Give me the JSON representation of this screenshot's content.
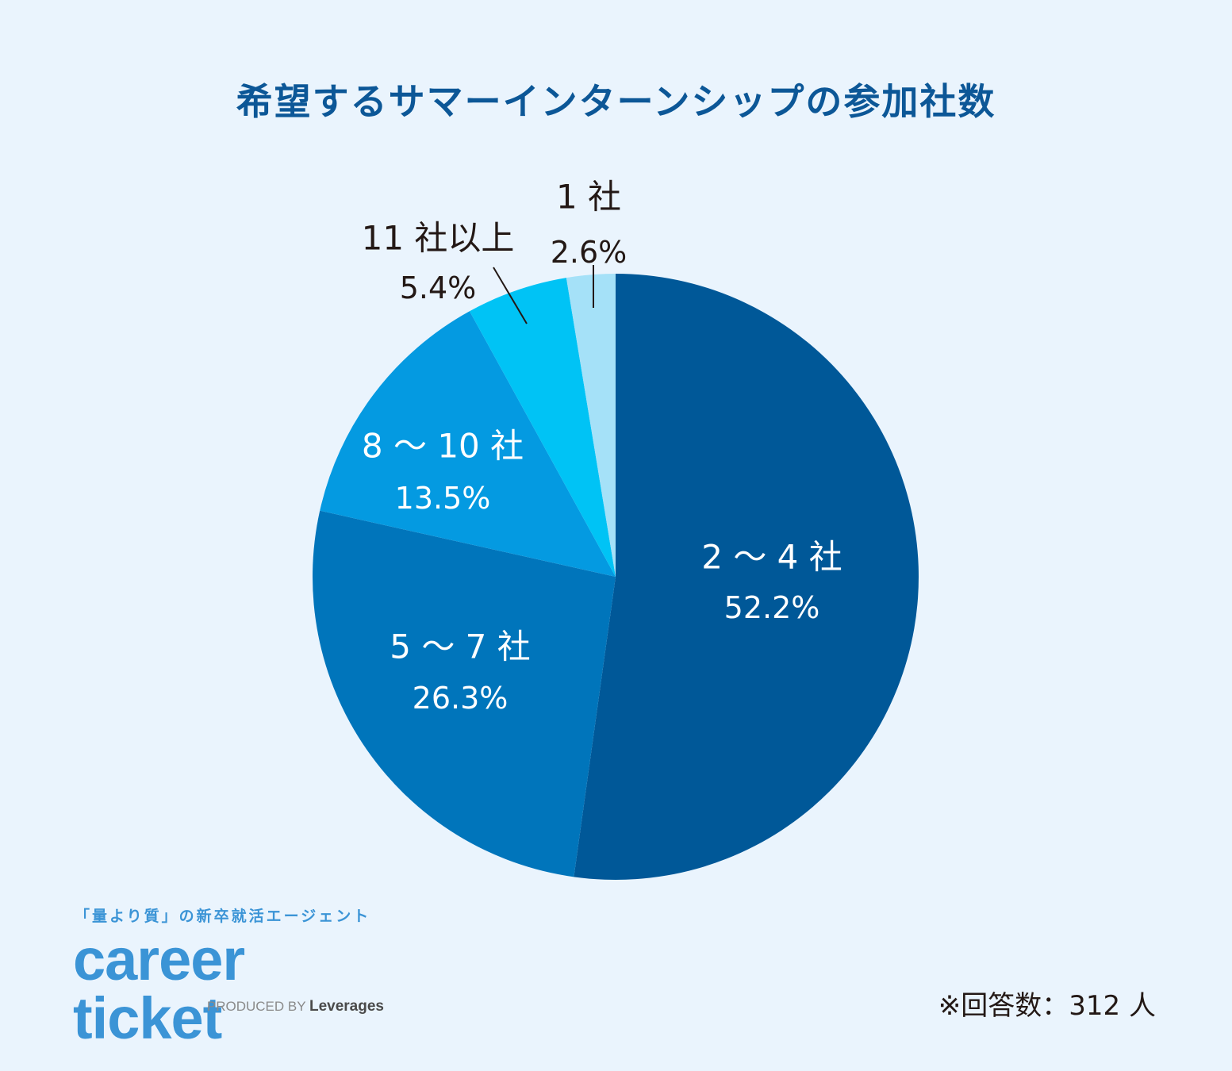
{
  "title": "希望するサマーインターンシップの参加社数",
  "chart_data": {
    "type": "pie",
    "title": "希望するサマーインターンシップの参加社数",
    "start_angle_deg": 0,
    "direction": "clockwise",
    "slices": [
      {
        "label": "2 ～ 4 社",
        "value": 52.2,
        "value_label": "52.2%",
        "color": "#005898",
        "text_color": "#ffffff",
        "label_position": "inside"
      },
      {
        "label": "5 ～ 7 社",
        "value": 26.3,
        "value_label": "26.3%",
        "color": "#0075bb",
        "text_color": "#ffffff",
        "label_position": "inside"
      },
      {
        "label": "8 ～ 10 社",
        "value": 13.5,
        "value_label": "13.5%",
        "color": "#049ae1",
        "text_color": "#ffffff",
        "label_position": "inside"
      },
      {
        "label": "11 社以上",
        "value": 5.4,
        "value_label": "5.4%",
        "color": "#00c3f5",
        "text_color": "#231815",
        "label_position": "outside"
      },
      {
        "label": "1 社",
        "value": 2.6,
        "value_label": "2.6%",
        "color": "#a5e1f8",
        "text_color": "#231815",
        "label_position": "outside"
      }
    ]
  },
  "branding": {
    "tagline": "「量より質」の新卒就活エージェント",
    "logo": "career ticket",
    "produced_by": "PRODUCED BY",
    "company": "Leverages"
  },
  "note": "※回答数：312 人"
}
